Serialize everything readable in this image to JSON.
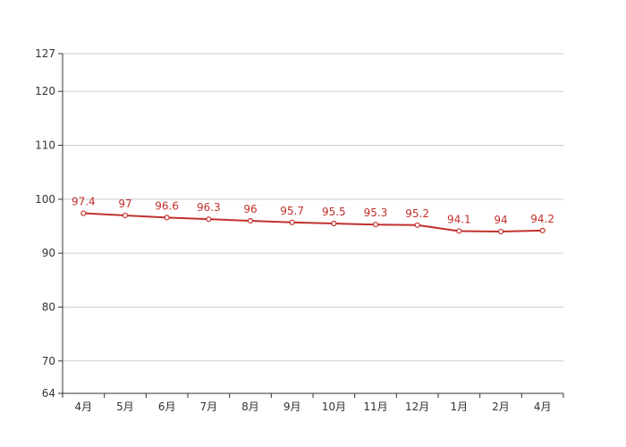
{
  "colors": {
    "series": "#c0302b",
    "grid": "#cccccc",
    "axis": "#333333",
    "point_fill": "#ffffff"
  },
  "chart_data": {
    "type": "line",
    "categories": [
      "4月",
      "5月",
      "6月",
      "7月",
      "8月",
      "9月",
      "10月",
      "11月",
      "12月",
      "1月",
      "2月",
      "4月"
    ],
    "series": [
      {
        "values": [
          97.4,
          97,
          96.6,
          96.3,
          96,
          95.7,
          95.5,
          95.3,
          95.2,
          94.1,
          94,
          94.2
        ],
        "data_labels": [
          "97.4",
          "97",
          "96.6",
          "96.3",
          "96",
          "95.7",
          "95.5",
          "95.3",
          "95.2",
          "94.1",
          "94",
          "94.2"
        ]
      }
    ],
    "yticks": [
      64,
      70,
      80,
      90,
      100,
      110,
      120,
      127
    ],
    "ylim": [
      64,
      127
    ],
    "grid": true,
    "legend": "none",
    "title": "",
    "xlabel": "",
    "ylabel": ""
  }
}
